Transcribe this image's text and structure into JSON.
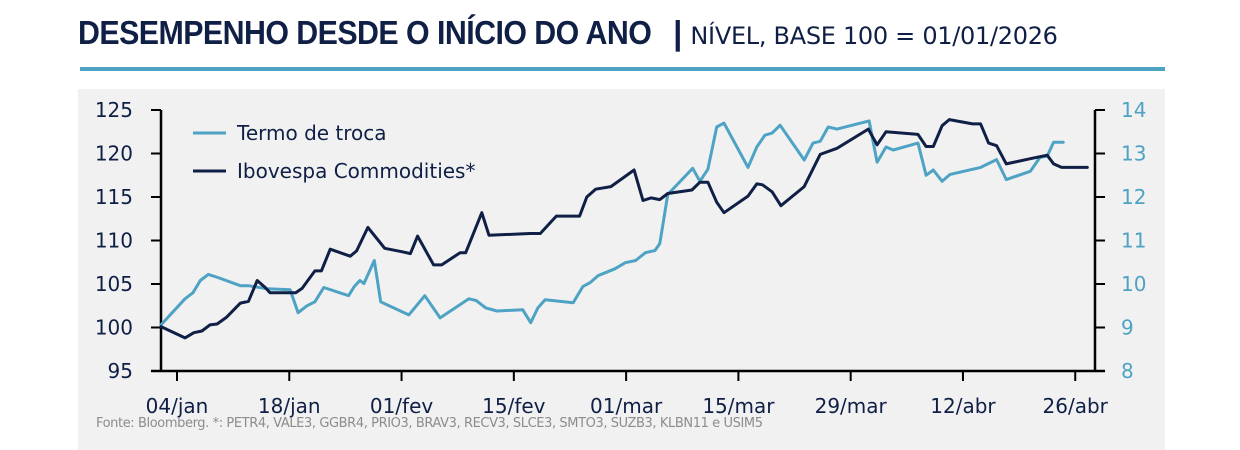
{
  "header": {
    "title": "DESEMPENHO DESDE O INÍCIO DO ANO",
    "separator": "|",
    "subtitle": "NÍVEL, BASE 100 = 01/01/2026"
  },
  "footer": {
    "source": "Fonte: Bloomberg. *: PETR4, VALE3, GGBR4, PRIO3, BRAV3, RECV3, SLCE3, SMTO3, SUZB3, KLBN11 e USIM5"
  },
  "chart_data": {
    "type": "line",
    "title": "DESEMPENHO DESDE O INÍCIO DO ANO",
    "subtitle": "NÍVEL, BASE 100 = 01/01/2026",
    "xlabel": "",
    "x_unit": "day of year 2026 (1 = 01/jan)",
    "x_ticks": [
      {
        "day": 4,
        "label": "04/jan"
      },
      {
        "day": 18,
        "label": "18/jan"
      },
      {
        "day": 32,
        "label": "01/fev"
      },
      {
        "day": 46,
        "label": "15/fev"
      },
      {
        "day": 60,
        "label": "01/mar"
      },
      {
        "day": 74,
        "label": "15/mar"
      },
      {
        "day": 88,
        "label": "29/mar"
      },
      {
        "day": 102,
        "label": "12/abr"
      },
      {
        "day": 116,
        "label": "26/abr"
      }
    ],
    "xlim": [
      2,
      119.5
    ],
    "y_left": {
      "label": "",
      "lim": [
        95,
        125
      ],
      "ticks": [
        95,
        100,
        105,
        110,
        115,
        120,
        125
      ],
      "color": "#0f1f45"
    },
    "y_right": {
      "label": "",
      "lim": [
        8,
        14
      ],
      "ticks": [
        8,
        9,
        10,
        11,
        12,
        13,
        14
      ],
      "color": "#4ea3c4"
    },
    "grid": false,
    "legend": {
      "placement": "top-left",
      "entries": [
        "Termo de troca",
        "Ibovespa Commodities*"
      ]
    },
    "series": [
      {
        "name": "Termo de troca",
        "axis": "right",
        "color": "#4ea3c4",
        "points": [
          [
            2.0,
            9.06
          ],
          [
            3.4,
            9.34
          ],
          [
            5.0,
            9.66
          ],
          [
            6.0,
            9.8
          ],
          [
            6.9,
            10.08
          ],
          [
            7.9,
            10.22
          ],
          [
            9.1,
            10.15
          ],
          [
            11.9,
            9.96
          ],
          [
            12.9,
            9.96
          ],
          [
            15.3,
            9.89
          ],
          [
            18.1,
            9.87
          ],
          [
            19.1,
            9.34
          ],
          [
            20.2,
            9.5
          ],
          [
            21.2,
            9.59
          ],
          [
            22.3,
            9.92
          ],
          [
            25.4,
            9.73
          ],
          [
            26.1,
            9.94
          ],
          [
            26.8,
            10.08
          ],
          [
            27.3,
            10.01
          ],
          [
            28.6,
            10.54
          ],
          [
            29.4,
            9.59
          ],
          [
            32.9,
            9.29
          ],
          [
            34.9,
            9.73
          ],
          [
            36.8,
            9.22
          ],
          [
            40.4,
            9.66
          ],
          [
            41.3,
            9.62
          ],
          [
            42.5,
            9.45
          ],
          [
            43.9,
            9.38
          ],
          [
            47.1,
            9.41
          ],
          [
            48.1,
            9.11
          ],
          [
            49.0,
            9.45
          ],
          [
            49.9,
            9.64
          ],
          [
            50.8,
            9.62
          ],
          [
            53.4,
            9.57
          ],
          [
            54.6,
            9.94
          ],
          [
            55.5,
            10.03
          ],
          [
            56.5,
            10.19
          ],
          [
            58.6,
            10.35
          ],
          [
            59.9,
            10.49
          ],
          [
            61.2,
            10.54
          ],
          [
            62.4,
            10.72
          ],
          [
            63.6,
            10.77
          ],
          [
            64.2,
            10.93
          ],
          [
            65.2,
            12.06
          ],
          [
            68.3,
            12.66
          ],
          [
            69.2,
            12.36
          ],
          [
            70.2,
            12.64
          ],
          [
            71.3,
            13.61
          ],
          [
            72.2,
            13.7
          ],
          [
            75.2,
            12.68
          ],
          [
            76.3,
            13.15
          ],
          [
            77.3,
            13.42
          ],
          [
            78.2,
            13.47
          ],
          [
            79.2,
            13.65
          ],
          [
            82.2,
            12.85
          ],
          [
            83.3,
            13.24
          ],
          [
            84.2,
            13.28
          ],
          [
            85.2,
            13.61
          ],
          [
            86.3,
            13.56
          ],
          [
            90.3,
            13.75
          ],
          [
            91.3,
            12.8
          ],
          [
            92.4,
            13.15
          ],
          [
            93.3,
            13.08
          ],
          [
            96.4,
            13.24
          ],
          [
            97.4,
            12.5
          ],
          [
            98.3,
            12.62
          ],
          [
            99.4,
            12.36
          ],
          [
            100.4,
            12.52
          ],
          [
            104.2,
            12.68
          ],
          [
            106.2,
            12.86
          ],
          [
            107.4,
            12.4
          ],
          [
            110.4,
            12.59
          ],
          [
            111.6,
            12.91
          ],
          [
            112.5,
            12.94
          ],
          [
            113.3,
            13.26
          ],
          [
            114.5,
            13.26
          ]
        ]
      },
      {
        "name": "Ibovespa Commodities*",
        "axis": "left",
        "color": "#0f1f45",
        "points": [
          [
            2.0,
            100.1
          ],
          [
            5.0,
            98.8
          ],
          [
            6.1,
            99.4
          ],
          [
            7.1,
            99.6
          ],
          [
            8.1,
            100.3
          ],
          [
            9.0,
            100.4
          ],
          [
            10.2,
            101.2
          ],
          [
            11.9,
            102.8
          ],
          [
            12.9,
            103.0
          ],
          [
            14.0,
            105.4
          ],
          [
            15.0,
            104.6
          ],
          [
            15.6,
            104.0
          ],
          [
            17.8,
            104.0
          ],
          [
            18.8,
            104.0
          ],
          [
            19.6,
            104.5
          ],
          [
            21.2,
            106.5
          ],
          [
            22.0,
            106.5
          ],
          [
            23.1,
            109.0
          ],
          [
            25.6,
            108.2
          ],
          [
            26.4,
            108.8
          ],
          [
            27.8,
            111.5
          ],
          [
            29.9,
            109.1
          ],
          [
            32.1,
            108.7
          ],
          [
            33.1,
            108.5
          ],
          [
            34.0,
            110.5
          ],
          [
            36.0,
            107.2
          ],
          [
            37.0,
            107.2
          ],
          [
            39.3,
            108.6
          ],
          [
            40.0,
            108.6
          ],
          [
            42.0,
            113.2
          ],
          [
            42.9,
            110.6
          ],
          [
            48.0,
            110.8
          ],
          [
            49.3,
            110.8
          ],
          [
            51.3,
            112.8
          ],
          [
            54.2,
            112.8
          ],
          [
            55.1,
            115.0
          ],
          [
            56.2,
            115.9
          ],
          [
            58.1,
            116.2
          ],
          [
            61.0,
            118.1
          ],
          [
            62.1,
            114.6
          ],
          [
            63.1,
            114.9
          ],
          [
            64.2,
            114.7
          ],
          [
            65.2,
            115.4
          ],
          [
            68.2,
            115.8
          ],
          [
            69.2,
            116.7
          ],
          [
            70.2,
            116.7
          ],
          [
            71.3,
            114.4
          ],
          [
            72.2,
            113.2
          ],
          [
            75.2,
            115.1
          ],
          [
            76.3,
            116.5
          ],
          [
            77.0,
            116.4
          ],
          [
            78.2,
            115.6
          ],
          [
            79.3,
            114.0
          ],
          [
            82.2,
            116.2
          ],
          [
            84.2,
            119.9
          ],
          [
            86.3,
            120.6
          ],
          [
            90.2,
            122.8
          ],
          [
            91.3,
            121.0
          ],
          [
            92.4,
            122.5
          ],
          [
            96.4,
            122.2
          ],
          [
            97.4,
            120.8
          ],
          [
            98.3,
            120.8
          ],
          [
            99.4,
            123.2
          ],
          [
            100.3,
            123.9
          ],
          [
            103.2,
            123.4
          ],
          [
            104.2,
            123.4
          ],
          [
            105.2,
            121.2
          ],
          [
            106.2,
            120.9
          ],
          [
            107.4,
            118.8
          ],
          [
            110.4,
            119.4
          ],
          [
            112.5,
            119.8
          ],
          [
            113.3,
            118.8
          ],
          [
            114.3,
            118.4
          ],
          [
            117.5,
            118.4
          ]
        ]
      }
    ]
  }
}
